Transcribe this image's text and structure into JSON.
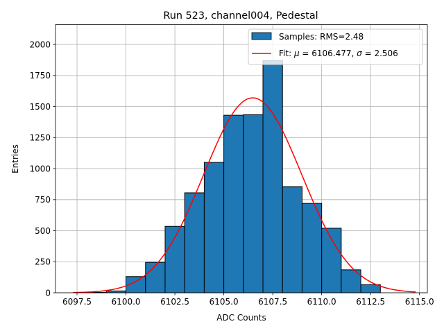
{
  "chart_data": {
    "type": "bar",
    "title": "Run 523, channel004, Pedestal",
    "xlabel": "ADC Counts",
    "ylabel": "Entries",
    "xlim": [
      6096.4,
      6115.4
    ],
    "ylim": [
      0,
      2160
    ],
    "xticks": [
      6097.5,
      6100.0,
      6102.5,
      6105.0,
      6107.5,
      6110.0,
      6112.5,
      6115.0
    ],
    "xtick_labels": [
      "6097.5",
      "6100.0",
      "6102.5",
      "6105.0",
      "6107.5",
      "6110.0",
      "6112.5",
      "6115.0"
    ],
    "yticks": [
      0,
      250,
      500,
      750,
      1000,
      1250,
      1500,
      1750,
      2000
    ],
    "ytick_labels": [
      "0",
      "250",
      "500",
      "750",
      "1000",
      "1250",
      "1500",
      "1750",
      "2000"
    ],
    "grid": true,
    "histogram": {
      "name": "Samples: RMS=2.48",
      "color": "#1f77b4",
      "edge_color": "#000000",
      "bins": [
        {
          "left": 6098.0,
          "right": 6099.0,
          "count": 3
        },
        {
          "left": 6099.0,
          "right": 6100.0,
          "count": 15
        },
        {
          "left": 6100.0,
          "right": 6101.0,
          "count": 130
        },
        {
          "left": 6101.0,
          "right": 6102.0,
          "count": 245
        },
        {
          "left": 6102.0,
          "right": 6103.0,
          "count": 535
        },
        {
          "left": 6103.0,
          "right": 6104.0,
          "count": 805
        },
        {
          "left": 6104.0,
          "right": 6105.0,
          "count": 1050
        },
        {
          "left": 6105.0,
          "right": 6106.0,
          "count": 1430
        },
        {
          "left": 6106.0,
          "right": 6107.0,
          "count": 1435
        },
        {
          "left": 6107.0,
          "right": 6108.0,
          "count": 1870
        },
        {
          "left": 6108.0,
          "right": 6109.0,
          "count": 855
        },
        {
          "left": 6109.0,
          "right": 6110.0,
          "count": 720
        },
        {
          "left": 6110.0,
          "right": 6111.0,
          "count": 520
        },
        {
          "left": 6111.0,
          "right": 6112.0,
          "count": 185
        },
        {
          "left": 6112.0,
          "right": 6113.0,
          "count": 65
        }
      ]
    },
    "fit": {
      "name": "Fit: μ = 6106.477, σ = 2.506",
      "label_prefix": "Fit: ",
      "mu_symbol": "μ",
      "mu_text": " = 6106.477, ",
      "sigma_symbol": "σ",
      "sigma_text": " = 2.506",
      "color": "#ff0000",
      "mu": 6106.477,
      "sigma": 2.506,
      "amplitude": 1570,
      "x_start": 6097.3,
      "x_end": 6114.8
    },
    "legend": {
      "placement": "top-right",
      "entries": [
        "Samples: RMS=2.48",
        "Fit: μ = 6106.477, σ = 2.506"
      ]
    }
  }
}
